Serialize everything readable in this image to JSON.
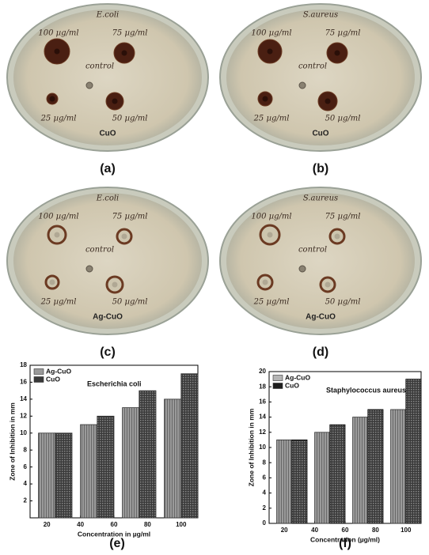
{
  "plates": [
    {
      "organism": "E.coli",
      "labels": [
        "100 µg/ml",
        "75 µg/ml",
        "control",
        "25 µg/ml",
        "50 µg/ml"
      ],
      "material": "CuO"
    },
    {
      "organism": "S.aureus",
      "labels": [
        "100 µg/ml",
        "75 µg/ml",
        "control",
        "25 µg/ml",
        "50 µg/ml"
      ],
      "material": "CuO"
    },
    {
      "organism": "E.coli",
      "labels": [
        "100 µg/ml",
        "75 µg/ml",
        "control",
        "25 µg/ml",
        "50 µg/ml"
      ],
      "material": "Ag-CuO"
    },
    {
      "organism": "S.aureus",
      "labels": [
        "100 µg/ml",
        "75 µg/ml",
        "control",
        "25 µg/ml",
        "50 µg/ml"
      ],
      "material": "Ag-CuO"
    }
  ],
  "panel_labels": [
    "(a)",
    "(b)",
    "(c)",
    "(d)",
    "(e)",
    "(f)"
  ],
  "chart_data": [
    {
      "type": "bar",
      "title": "Escherichia coli",
      "x_label": "Concentration in µg/ml",
      "y_label": "Zone of Inhibition in mm",
      "x": [
        25,
        50,
        75,
        100
      ],
      "xlim": [
        10,
        110
      ],
      "xticks": [
        20,
        40,
        60,
        80,
        100
      ],
      "ylim": [
        0,
        18
      ],
      "yticks": [
        2,
        4,
        6,
        8,
        10,
        12,
        14,
        16,
        18
      ],
      "legend": "top-left",
      "series": [
        {
          "name": "Ag-CuO",
          "color": "#9a9a9a",
          "values": [
            10,
            11,
            13,
            14
          ]
        },
        {
          "name": "CuO",
          "color": "#3a3a3a",
          "values": [
            10,
            12,
            15,
            17
          ]
        }
      ]
    },
    {
      "type": "bar",
      "title": "Staphylococcus aureus",
      "x_label": "Concentration (µg/ml)",
      "y_label": "Zone of Inhibition in mm",
      "x": [
        25,
        50,
        75,
        100
      ],
      "xlim": [
        10,
        110
      ],
      "xticks": [
        20,
        40,
        60,
        80,
        100
      ],
      "ylim": [
        0,
        20
      ],
      "yticks": [
        0,
        2,
        4,
        6,
        8,
        10,
        12,
        14,
        16,
        18,
        20
      ],
      "legend": "top-left",
      "series": [
        {
          "name": "Ag-CuO",
          "color": "#b5b5b5",
          "values": [
            11,
            12,
            14,
            15
          ]
        },
        {
          "name": "CuO",
          "color": "#1e1e1e",
          "values": [
            11,
            13,
            15,
            19
          ]
        }
      ]
    }
  ]
}
